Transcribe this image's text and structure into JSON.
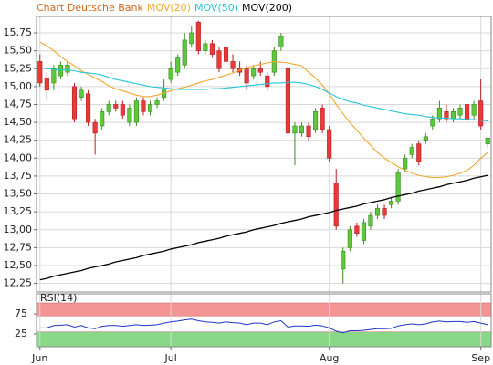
{
  "chart_data": {
    "type": "candlestick",
    "title": "Chart Deutsche Bank",
    "categories": [
      "Jun",
      null,
      null,
      null,
      null,
      null,
      null,
      null,
      null,
      null,
      null,
      null,
      null,
      null,
      null,
      null,
      null,
      null,
      null,
      "Jul",
      null,
      null,
      null,
      null,
      null,
      null,
      null,
      null,
      null,
      null,
      null,
      null,
      null,
      null,
      null,
      null,
      null,
      null,
      null,
      null,
      null,
      null,
      "Aug",
      null,
      null,
      null,
      null,
      null,
      null,
      null,
      null,
      null,
      null,
      null,
      null,
      null,
      null,
      null,
      null,
      null,
      null,
      null,
      null,
      null,
      "Sep",
      null
    ],
    "open": [
      15.35,
      15.12,
      15.05,
      15.15,
      15.2,
      15.0,
      14.85,
      14.9,
      14.5,
      14.45,
      14.65,
      14.75,
      14.75,
      14.5,
      14.5,
      14.8,
      14.65,
      14.75,
      14.85,
      15.1,
      15.2,
      15.3,
      15.6,
      15.9,
      15.5,
      15.6,
      15.5,
      15.55,
      15.35,
      15.25,
      15.25,
      15.15,
      15.25,
      15.15,
      15.2,
      15.55,
      15.25,
      14.35,
      14.35,
      14.45,
      14.4,
      14.7,
      14.4,
      13.65,
      12.45,
      12.75,
      13.05,
      12.85,
      13.05,
      13.2,
      13.3,
      13.35,
      13.4,
      13.85,
      14.05,
      14.2,
      14.25,
      14.45,
      14.55,
      14.65,
      14.55,
      14.6,
      14.75,
      14.6,
      14.8,
      14.2
    ],
    "high": [
      15.45,
      15.2,
      15.3,
      15.35,
      15.35,
      15.05,
      15.0,
      14.95,
      14.55,
      14.7,
      14.8,
      14.8,
      14.8,
      14.75,
      14.85,
      14.85,
      14.8,
      14.85,
      15.1,
      15.35,
      15.45,
      15.75,
      15.85,
      15.92,
      15.65,
      15.65,
      15.55,
      15.6,
      15.45,
      15.35,
      15.3,
      15.3,
      15.35,
      15.2,
      15.55,
      15.75,
      15.3,
      14.5,
      14.5,
      14.5,
      14.7,
      14.75,
      14.45,
      13.85,
      12.75,
      13.05,
      13.1,
      13.15,
      13.25,
      13.35,
      13.35,
      13.45,
      13.85,
      14.05,
      14.2,
      14.25,
      14.35,
      14.6,
      14.8,
      14.75,
      14.7,
      14.75,
      14.8,
      14.8,
      15.1,
      14.3
    ],
    "low": [
      15.0,
      14.8,
      14.95,
      15.1,
      15.15,
      14.5,
      14.8,
      14.45,
      14.05,
      14.4,
      14.6,
      14.65,
      14.55,
      14.45,
      14.45,
      14.6,
      14.6,
      14.7,
      14.8,
      15.05,
      15.15,
      15.25,
      15.55,
      15.45,
      15.45,
      15.4,
      15.2,
      15.3,
      15.2,
      15.15,
      14.95,
      15.1,
      15.15,
      14.95,
      15.15,
      15.5,
      14.3,
      13.9,
      14.3,
      14.25,
      14.35,
      14.35,
      13.95,
      13.0,
      12.25,
      12.7,
      12.9,
      12.8,
      13.0,
      13.15,
      13.15,
      13.3,
      13.35,
      13.8,
      14.0,
      13.9,
      14.2,
      14.4,
      14.5,
      14.5,
      14.5,
      14.55,
      14.5,
      14.55,
      14.4,
      14.15
    ],
    "close": [
      15.05,
      14.95,
      15.25,
      15.3,
      15.3,
      14.55,
      14.95,
      14.5,
      14.35,
      14.65,
      14.75,
      14.7,
      14.6,
      14.7,
      14.8,
      14.65,
      14.75,
      14.8,
      14.95,
      15.25,
      15.4,
      15.65,
      15.75,
      15.5,
      15.6,
      15.45,
      15.25,
      15.35,
      15.25,
      15.2,
      15.05,
      15.25,
      15.2,
      15.0,
      15.5,
      15.7,
      14.35,
      14.45,
      14.45,
      14.3,
      14.65,
      14.4,
      14.0,
      13.05,
      12.7,
      13.0,
      12.95,
      13.1,
      13.2,
      13.3,
      13.2,
      13.4,
      13.8,
      14.0,
      14.15,
      13.95,
      14.3,
      14.55,
      14.7,
      14.55,
      14.65,
      14.7,
      14.55,
      14.75,
      14.45,
      14.28
    ],
    "up_color": "#5cc83a",
    "down_color": "#e83a3a",
    "ylim": [
      12.13,
      15.98
    ],
    "yticks": [
      {
        "value": 12.25,
        "label": "12,25"
      },
      {
        "value": 12.5,
        "label": "12,50"
      },
      {
        "value": 12.75,
        "label": "12,75"
      },
      {
        "value": 13.0,
        "label": "13,00"
      },
      {
        "value": 13.25,
        "label": "13,25"
      },
      {
        "value": 13.5,
        "label": "13,50"
      },
      {
        "value": 13.75,
        "label": "13,75"
      },
      {
        "value": 14.0,
        "label": "14,00"
      },
      {
        "value": 14.25,
        "label": "14,25"
      },
      {
        "value": 14.5,
        "label": "14,50"
      },
      {
        "value": 14.75,
        "label": "14,75"
      },
      {
        "value": 15.0,
        "label": "15,00"
      },
      {
        "value": 15.25,
        "label": "15,25"
      },
      {
        "value": 15.5,
        "label": "15,50"
      },
      {
        "value": 15.75,
        "label": "15,75"
      }
    ],
    "grid": true,
    "series": [
      {
        "name": "MOV(20)",
        "color": "#f0a830",
        "values": [
          15.62,
          15.57,
          15.5,
          15.42,
          15.35,
          15.29,
          15.22,
          15.17,
          15.12,
          15.07,
          15.01,
          14.97,
          14.94,
          14.91,
          14.88,
          14.86,
          14.86,
          14.88,
          14.91,
          14.94,
          14.97,
          14.99,
          15.02,
          15.05,
          15.08,
          15.1,
          15.13,
          15.16,
          15.19,
          15.23,
          15.26,
          15.29,
          15.31,
          15.33,
          15.35,
          15.34,
          15.33,
          15.31,
          15.29,
          15.2,
          15.12,
          15.02,
          14.9,
          14.75,
          14.62,
          14.5,
          14.39,
          14.28,
          14.18,
          14.08,
          14.0,
          13.94,
          13.88,
          13.83,
          13.79,
          13.76,
          13.74,
          13.73,
          13.73,
          13.74,
          13.76,
          13.79,
          13.83,
          13.9,
          14.0,
          14.08
        ]
      },
      {
        "name": "MOV(50)",
        "color": "#22c4d8",
        "values": [
          15.26,
          15.25,
          15.24,
          15.23,
          15.23,
          15.22,
          15.2,
          15.19,
          15.18,
          15.16,
          15.13,
          15.1,
          15.08,
          15.06,
          15.04,
          15.02,
          15.0,
          14.99,
          14.98,
          14.97,
          14.96,
          14.96,
          14.96,
          14.96,
          14.96,
          14.97,
          14.97,
          14.98,
          14.99,
          15.0,
          15.01,
          15.02,
          15.03,
          15.04,
          15.05,
          15.05,
          15.06,
          15.06,
          15.05,
          15.03,
          15.0,
          14.96,
          14.91,
          14.86,
          14.82,
          14.79,
          14.77,
          14.74,
          14.72,
          14.7,
          14.68,
          14.66,
          14.64,
          14.62,
          14.61,
          14.6,
          14.58,
          14.57,
          14.56,
          14.56,
          14.55,
          14.55,
          14.54,
          14.54,
          14.53,
          14.52
        ]
      },
      {
        "name": "MOV(200)",
        "color": "#000000",
        "values": [
          12.3,
          12.32,
          12.35,
          12.37,
          12.39,
          12.41,
          12.43,
          12.46,
          12.48,
          12.5,
          12.52,
          12.55,
          12.57,
          12.59,
          12.61,
          12.64,
          12.66,
          12.68,
          12.7,
          12.73,
          12.75,
          12.77,
          12.79,
          12.82,
          12.84,
          12.86,
          12.88,
          12.91,
          12.93,
          12.95,
          12.97,
          13.0,
          13.02,
          13.04,
          13.06,
          13.09,
          13.11,
          13.13,
          13.15,
          13.18,
          13.2,
          13.22,
          13.24,
          13.27,
          13.29,
          13.31,
          13.33,
          13.36,
          13.38,
          13.4,
          13.42,
          13.45,
          13.47,
          13.49,
          13.51,
          13.54,
          13.56,
          13.58,
          13.6,
          13.63,
          13.65,
          13.67,
          13.69,
          13.72,
          13.74,
          13.76
        ]
      }
    ],
    "rsi": {
      "label": "RSI(14)",
      "color": "#2233cc",
      "ylim": [
        0,
        100
      ],
      "yticks": [
        75,
        25
      ],
      "bands": [
        {
          "range": [
            70,
            100
          ],
          "color": "#f49494"
        },
        {
          "range": [
            0,
            30
          ],
          "color": "#88d888"
        }
      ],
      "values": [
        40,
        40,
        46,
        47,
        48,
        42,
        46,
        40,
        38,
        44,
        46,
        46,
        44,
        46,
        48,
        46,
        47,
        48,
        52,
        55,
        57,
        60,
        62,
        58,
        55,
        54,
        52,
        55,
        53,
        52,
        48,
        52,
        52,
        48,
        55,
        58,
        42,
        45,
        45,
        44,
        47,
        45,
        40,
        32,
        28,
        33,
        33,
        34,
        36,
        38,
        38,
        39,
        45,
        48,
        50,
        48,
        50,
        55,
        57,
        55,
        56,
        56,
        54,
        56,
        52,
        48
      ]
    }
  }
}
